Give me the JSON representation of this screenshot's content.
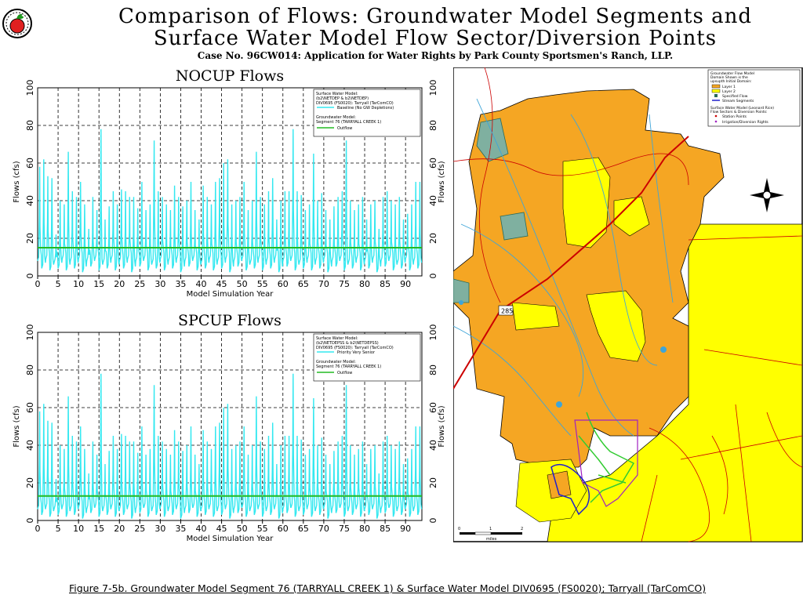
{
  "header": {
    "title_line1": "Comparison of Flows: Groundwater Model Segments and",
    "title_line2": "Surface Water Model Flow Sector/Diversion Points",
    "subtitle": "Case No. 96CW014: Application for Water Rights by Park County Sportsmen's Ranch, LLP."
  },
  "caption": "Figure 7-5b. Groundwater Model Segment 76 (TARRYALL CREEK 1) & Surface Water Model DIV0695 (FS0020); Tarryall (TarComCO)",
  "colors": {
    "surface_flow": "#33e8f0",
    "outflow": "#22bb22",
    "grid": "#000000"
  },
  "chart_data": [
    {
      "type": "line",
      "title": "NOCUP Flows",
      "xlabel": "Model Simulation Year",
      "ylabel": "Flows (cfs)",
      "xlim": [
        0,
        94
      ],
      "ylim": [
        0,
        100
      ],
      "xticks": [
        0,
        5,
        10,
        15,
        20,
        25,
        30,
        35,
        40,
        45,
        50,
        55,
        60,
        65,
        70,
        75,
        80,
        85,
        90
      ],
      "yticks": [
        0,
        20,
        40,
        60,
        80,
        100
      ],
      "grid": true,
      "legend": {
        "surface_heading1": "Surface Water Model:",
        "surface_heading2": "(b2\\NETDEP & b2\\NETDEP)",
        "surface_heading3": "DIV0695 (FS0020): Tarryall (TarComCO)",
        "gw_heading1": "Groundwater Model:",
        "gw_heading2": "Segment 76 (TARRYALL CREEK 1)"
      },
      "series": [
        {
          "name": "Baseline (No GW Depletions)",
          "color": "#33e8f0",
          "kind": "annual_peaks",
          "x": [
            0,
            1,
            2,
            3,
            4,
            5,
            6,
            7,
            8,
            9,
            10,
            11,
            12,
            13,
            14,
            15,
            16,
            17,
            18,
            19,
            20,
            21,
            22,
            23,
            24,
            25,
            26,
            27,
            28,
            29,
            30,
            31,
            32,
            33,
            34,
            35,
            36,
            37,
            38,
            39,
            40,
            41,
            42,
            43,
            44,
            45,
            46,
            47,
            48,
            49,
            50,
            51,
            52,
            53,
            54,
            55,
            56,
            57,
            58,
            59,
            60,
            61,
            62,
            63,
            64,
            65,
            66,
            67,
            68,
            69,
            70,
            71,
            72,
            73,
            74,
            75,
            76,
            77,
            78,
            79,
            80,
            81,
            82,
            83,
            84,
            85,
            86,
            87,
            88,
            89,
            90,
            91,
            92,
            93
          ],
          "peak": [
            58,
            62,
            53,
            52,
            22,
            40,
            38,
            66,
            45,
            42,
            50,
            38,
            25,
            42,
            35,
            78,
            30,
            37,
            45,
            38,
            46,
            45,
            42,
            42,
            36,
            50,
            35,
            38,
            72,
            45,
            42,
            38,
            35,
            48,
            42,
            37,
            40,
            50,
            35,
            30,
            48,
            42,
            38,
            50,
            52,
            60,
            62,
            38,
            40,
            42,
            50,
            35,
            40,
            66,
            42,
            38,
            45,
            52,
            30,
            40,
            45,
            45,
            78,
            45,
            43,
            35,
            38,
            65,
            40,
            44,
            35,
            30,
            37,
            42,
            45,
            72,
            40,
            35,
            38,
            42,
            30,
            38,
            40,
            25,
            42,
            45,
            40,
            38,
            42,
            30,
            33,
            38,
            50,
            50
          ],
          "low": [
            8,
            4,
            9,
            3,
            7,
            4,
            9,
            3,
            8,
            4,
            9,
            2,
            8,
            5,
            9,
            3,
            7,
            4,
            9,
            3,
            8,
            4,
            9,
            2,
            8,
            5,
            9,
            3,
            7,
            4,
            9,
            3,
            8,
            4,
            9,
            2,
            8,
            5,
            9,
            3,
            7,
            4,
            9,
            3,
            8,
            4,
            9,
            2,
            8,
            5,
            9,
            3,
            7,
            4,
            9,
            3,
            8,
            4,
            9,
            2,
            8,
            5,
            9,
            3,
            7,
            4,
            9,
            3,
            8,
            4,
            9,
            2,
            8,
            5,
            9,
            3,
            7,
            4,
            9,
            3,
            8,
            4,
            9,
            2,
            8,
            5,
            9,
            3,
            7,
            4,
            9,
            3,
            8,
            4
          ]
        },
        {
          "name": "Outflow",
          "color": "#22bb22",
          "kind": "flat",
          "value": 15
        }
      ]
    },
    {
      "type": "line",
      "title": "SPCUP Flows",
      "xlabel": "Model Simulation Year",
      "ylabel": "Flows (cfs)",
      "xlim": [
        0,
        94
      ],
      "ylim": [
        0,
        100
      ],
      "xticks": [
        0,
        5,
        10,
        15,
        20,
        25,
        30,
        35,
        40,
        45,
        50,
        55,
        60,
        65,
        70,
        75,
        80,
        85,
        90
      ],
      "yticks": [
        0,
        20,
        40,
        60,
        80,
        100
      ],
      "grid": true,
      "legend": {
        "surface_heading1": "Surface Water Model:",
        "surface_heading2": "(b2\\NETDEPSS & b2\\NETDEPSS)",
        "surface_heading3": "DIV0695 (FS0020): Tarryall (TarComCO)",
        "gw_heading1": "Groundwater Model:",
        "gw_heading2": "Segment 76 (TARRYALL CREEK 1)"
      },
      "series": [
        {
          "name": "Priority Very Senior",
          "color": "#33e8f0",
          "kind": "annual_peaks",
          "x": [
            0,
            1,
            2,
            3,
            4,
            5,
            6,
            7,
            8,
            9,
            10,
            11,
            12,
            13,
            14,
            15,
            16,
            17,
            18,
            19,
            20,
            21,
            22,
            23,
            24,
            25,
            26,
            27,
            28,
            29,
            30,
            31,
            32,
            33,
            34,
            35,
            36,
            37,
            38,
            39,
            40,
            41,
            42,
            43,
            44,
            45,
            46,
            47,
            48,
            49,
            50,
            51,
            52,
            53,
            54,
            55,
            56,
            57,
            58,
            59,
            60,
            61,
            62,
            63,
            64,
            65,
            66,
            67,
            68,
            69,
            70,
            71,
            72,
            73,
            74,
            75,
            76,
            77,
            78,
            79,
            80,
            81,
            82,
            83,
            84,
            85,
            86,
            87,
            88,
            89,
            90,
            91,
            92,
            93
          ],
          "peak": [
            58,
            62,
            53,
            52,
            22,
            40,
            38,
            66,
            45,
            42,
            50,
            38,
            25,
            42,
            35,
            78,
            30,
            37,
            45,
            38,
            46,
            45,
            42,
            42,
            36,
            50,
            35,
            38,
            72,
            45,
            42,
            38,
            35,
            48,
            42,
            37,
            40,
            50,
            35,
            30,
            48,
            42,
            38,
            50,
            52,
            60,
            62,
            38,
            40,
            42,
            50,
            35,
            40,
            66,
            42,
            38,
            45,
            52,
            30,
            40,
            45,
            45,
            78,
            45,
            43,
            35,
            38,
            65,
            40,
            44,
            35,
            30,
            37,
            42,
            45,
            72,
            40,
            35,
            38,
            42,
            30,
            38,
            40,
            25,
            42,
            45,
            40,
            38,
            42,
            30,
            33,
            38,
            50,
            50
          ],
          "low": [
            6,
            3,
            7,
            2,
            6,
            3,
            7,
            2,
            6,
            3,
            7,
            1,
            6,
            4,
            7,
            2,
            6,
            3,
            7,
            2,
            6,
            3,
            7,
            1,
            6,
            4,
            7,
            2,
            6,
            3,
            7,
            2,
            6,
            3,
            7,
            1,
            6,
            4,
            7,
            2,
            6,
            3,
            7,
            2,
            6,
            3,
            7,
            1,
            6,
            4,
            7,
            2,
            6,
            3,
            7,
            2,
            6,
            3,
            7,
            1,
            6,
            4,
            7,
            2,
            6,
            3,
            7,
            2,
            6,
            3,
            7,
            1,
            6,
            4,
            7,
            2,
            6,
            3,
            7,
            2,
            6,
            3,
            7,
            1,
            6,
            4,
            7,
            2,
            6,
            3,
            7,
            2,
            6,
            3
          ]
        },
        {
          "name": "Outflow",
          "color": "#22bb22",
          "kind": "flat",
          "value": 13
        }
      ]
    }
  ],
  "map": {
    "legend": {
      "heading1": "Groundwater Flow Model",
      "heading2": "Domain Shown is the",
      "heading3": "upsupth Initial Domain:",
      "layer1": "Layer 1",
      "layer2": "Layer 2",
      "specified_flow": "Specified Flow",
      "stream_segments": "Stream Segments",
      "sw_heading1": "Surface Water Model (Leonard Rice)",
      "sw_heading2": "Flow Sectors & Diversion Points:",
      "station_points": "Station Points",
      "irrigation": "Irrigation/Diversion Rights"
    },
    "highway_label": "285",
    "scale_ticks": [
      "0",
      "1",
      "2"
    ],
    "scale_unit": "miles",
    "layer1_color": "#f5a623",
    "layer2_color": "#ffff00"
  }
}
